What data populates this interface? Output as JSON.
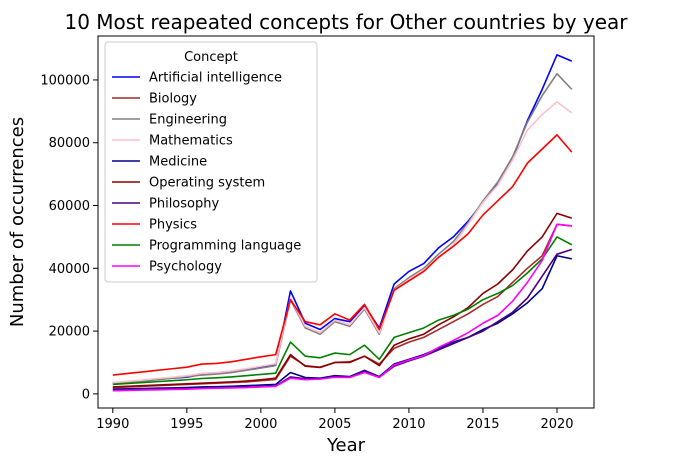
{
  "chart_data": {
    "type": "line",
    "title": "10 Most reapeated concepts for Other countries by year",
    "xlabel": "Year",
    "ylabel": "Number of occurrences",
    "xlim": [
      1989,
      2022.5
    ],
    "ylim": [
      -4500,
      114000
    ],
    "xticks": [
      1990,
      1995,
      2000,
      2005,
      2010,
      2015,
      2020
    ],
    "yticks": [
      0,
      20000,
      40000,
      60000,
      80000,
      100000
    ],
    "grid": false,
    "legend_title": "Concept",
    "legend_placement": "top-left",
    "x": [
      1990,
      1991,
      1992,
      1993,
      1994,
      1995,
      1996,
      1997,
      1998,
      1999,
      2000,
      2001,
      2002,
      2003,
      2004,
      2005,
      2006,
      2007,
      2008,
      2009,
      2010,
      2011,
      2012,
      2013,
      2014,
      2015,
      2016,
      2017,
      2018,
      2019,
      2020,
      2021
    ],
    "series": [
      {
        "name": "Artificial intelligence",
        "color": "#0000ff",
        "values": [
          3500,
          3800,
          4200,
          4600,
          5000,
          5300,
          6200,
          6500,
          7000,
          7800,
          8500,
          9200,
          32800,
          22500,
          20500,
          24000,
          23000,
          28000,
          21000,
          35000,
          39000,
          41500,
          46500,
          50000,
          55000,
          61000,
          67000,
          75000,
          87000,
          97000,
          108000,
          106000
        ]
      },
      {
        "name": "Biology",
        "color": "#a52a2a",
        "values": [
          2000,
          2200,
          2400,
          2600,
          2800,
          3000,
          3200,
          3400,
          3600,
          3800,
          4200,
          4600,
          12000,
          9000,
          8500,
          10000,
          10200,
          12000,
          9500,
          14500,
          16500,
          18000,
          20500,
          23000,
          25500,
          28500,
          31000,
          35500,
          40000,
          44000,
          54000,
          53500
        ]
      },
      {
        "name": "Engineering",
        "color": "#808080",
        "values": [
          3200,
          3600,
          4000,
          4500,
          5000,
          5500,
          6000,
          6300,
          6800,
          7500,
          8200,
          9000,
          30000,
          21000,
          19000,
          23000,
          21500,
          27000,
          19000,
          33500,
          37000,
          40000,
          44500,
          48500,
          54500,
          61500,
          67500,
          75500,
          86500,
          95000,
          102000,
          97000
        ]
      },
      {
        "name": "Mathematics",
        "color": "#ffc0cb",
        "values": [
          3600,
          4000,
          4400,
          4900,
          5300,
          5800,
          6500,
          6800,
          7300,
          8000,
          8800,
          9600,
          30500,
          21500,
          19500,
          23500,
          22000,
          27500,
          19500,
          33000,
          36500,
          39500,
          43500,
          47500,
          54000,
          61000,
          66500,
          74500,
          84000,
          89000,
          93000,
          89500
        ]
      },
      {
        "name": "Medicine",
        "color": "#00008b",
        "values": [
          1500,
          1600,
          1700,
          1800,
          1900,
          2000,
          2200,
          2300,
          2400,
          2600,
          2800,
          3000,
          6800,
          5200,
          5000,
          5800,
          5500,
          7500,
          5500,
          9500,
          11000,
          12500,
          14500,
          16500,
          18000,
          20500,
          22500,
          25500,
          29000,
          33500,
          44000,
          43000
        ]
      },
      {
        "name": "Operating system",
        "color": "#8b0000",
        "values": [
          2200,
          2400,
          2600,
          2800,
          3000,
          3200,
          3400,
          3600,
          3800,
          4100,
          4500,
          5000,
          12500,
          8800,
          8400,
          10000,
          10000,
          12000,
          9000,
          15500,
          17500,
          19000,
          22000,
          24500,
          27500,
          32000,
          35000,
          39500,
          45500,
          50000,
          57500,
          56000
        ]
      },
      {
        "name": "Philosophy",
        "color": "#4b0082",
        "values": [
          1200,
          1300,
          1400,
          1500,
          1600,
          1700,
          1800,
          1900,
          2000,
          2100,
          2300,
          2500,
          5400,
          4800,
          4800,
          5500,
          5300,
          7300,
          5300,
          8800,
          10500,
          12000,
          14000,
          16000,
          18000,
          20000,
          23000,
          26000,
          30500,
          37500,
          44500,
          46000
        ]
      },
      {
        "name": "Physics",
        "color": "#ff0000",
        "values": [
          6000,
          6500,
          7000,
          7500,
          8000,
          8500,
          9500,
          9700,
          10200,
          11000,
          11800,
          12500,
          30000,
          23000,
          22000,
          25500,
          23500,
          28500,
          20500,
          33000,
          36000,
          39000,
          43500,
          47000,
          51000,
          57000,
          61500,
          66000,
          73500,
          78000,
          82500,
          77000
        ]
      },
      {
        "name": "Programming language",
        "color": "#008000",
        "values": [
          3000,
          3300,
          3600,
          3900,
          4200,
          4500,
          4900,
          5100,
          5400,
          5800,
          6200,
          6600,
          16500,
          12000,
          11500,
          13000,
          12500,
          15500,
          11000,
          18000,
          19500,
          21000,
          23500,
          25000,
          27000,
          30000,
          32000,
          34500,
          38500,
          43000,
          50000,
          47500
        ]
      },
      {
        "name": "Psychology",
        "color": "#ff00ff",
        "values": [
          1000,
          1100,
          1200,
          1300,
          1400,
          1500,
          1700,
          1800,
          1900,
          2000,
          2200,
          2400,
          5000,
          4500,
          4700,
          5300,
          5200,
          6800,
          5200,
          9200,
          10800,
          12200,
          14800,
          17000,
          19500,
          22500,
          25000,
          29500,
          35500,
          42500,
          54000,
          53500
        ]
      }
    ]
  }
}
